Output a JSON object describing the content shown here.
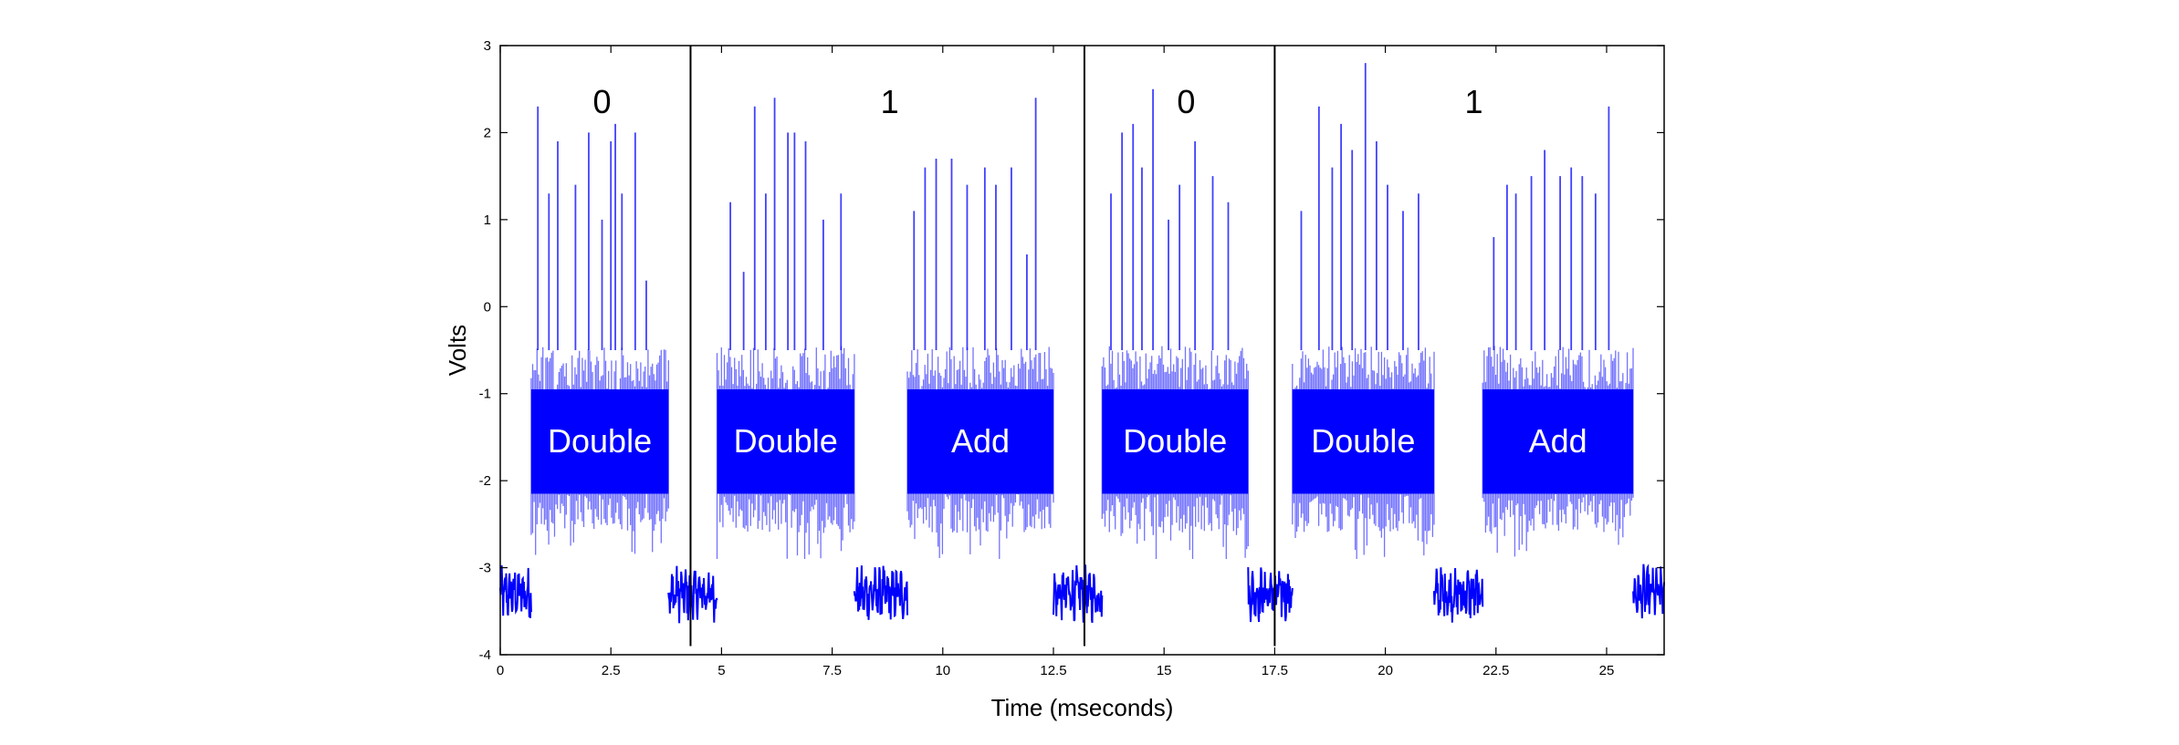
{
  "chart_data": {
    "type": "line",
    "title": "",
    "xlabel": "Time (mseconds)",
    "ylabel": "Volts",
    "xlim": [
      0,
      26.3
    ],
    "ylim": [
      -4,
      3
    ],
    "xticks": [
      0,
      2.5,
      5,
      7.5,
      10,
      12.5,
      15,
      17.5,
      20,
      22.5,
      25
    ],
    "xtick_labels": [
      "0",
      "2.5",
      "5",
      "7.5",
      "10",
      "12.5",
      "15",
      "17.5",
      "20",
      "22.5",
      "25"
    ],
    "yticks": [
      -4,
      -3,
      -2,
      -1,
      0,
      1,
      2,
      3
    ],
    "ytick_labels": [
      "-4",
      "-3",
      "-2",
      "-1",
      "0",
      "1",
      "2",
      "3"
    ],
    "grid": false,
    "legend": "none",
    "colors": {
      "trace": "#0000ff",
      "divider": "#000000",
      "bit_text": "#000000",
      "op_text": "#ffffff"
    },
    "baseline_level": -3.3,
    "burst_band": [
      -2.8,
      -0.5
    ],
    "dividers_x": [
      4.3,
      13.2,
      17.5
    ],
    "segments": [
      {
        "label": "Double",
        "start": 0.7,
        "end": 3.8,
        "spikes": [
          [
            0.85,
            2.3
          ],
          [
            1.1,
            1.3
          ],
          [
            1.3,
            1.9
          ],
          [
            1.7,
            1.4
          ],
          [
            2.0,
            2.0
          ],
          [
            2.3,
            1.0
          ],
          [
            2.5,
            1.9
          ],
          [
            2.6,
            2.1
          ],
          [
            2.75,
            1.3
          ],
          [
            3.05,
            2.0
          ],
          [
            3.3,
            0.3
          ]
        ]
      },
      {
        "label": "Double",
        "start": 4.9,
        "end": 8.0,
        "spikes": [
          [
            5.2,
            1.2
          ],
          [
            5.5,
            0.4
          ],
          [
            5.75,
            2.3
          ],
          [
            6.0,
            1.3
          ],
          [
            6.2,
            2.4
          ],
          [
            6.5,
            2.0
          ],
          [
            6.65,
            2.0
          ],
          [
            6.9,
            1.9
          ],
          [
            7.3,
            1.0
          ],
          [
            7.7,
            1.3
          ]
        ]
      },
      {
        "label": "Add",
        "start": 9.2,
        "end": 12.5,
        "spikes": [
          [
            9.35,
            1.1
          ],
          [
            9.6,
            1.6
          ],
          [
            9.85,
            1.7
          ],
          [
            10.2,
            1.7
          ],
          [
            10.55,
            1.4
          ],
          [
            10.95,
            1.6
          ],
          [
            11.2,
            1.4
          ],
          [
            11.55,
            1.6
          ],
          [
            11.9,
            0.6
          ],
          [
            12.1,
            2.4
          ]
        ]
      },
      {
        "label": "Double",
        "start": 13.6,
        "end": 16.9,
        "spikes": [
          [
            13.8,
            1.3
          ],
          [
            14.05,
            2.0
          ],
          [
            14.3,
            2.1
          ],
          [
            14.5,
            1.6
          ],
          [
            14.75,
            2.5
          ],
          [
            15.1,
            1.0
          ],
          [
            15.35,
            1.4
          ],
          [
            15.7,
            1.9
          ],
          [
            16.1,
            1.5
          ],
          [
            16.45,
            1.2
          ]
        ]
      },
      {
        "label": "Double",
        "start": 17.9,
        "end": 21.1,
        "spikes": [
          [
            18.1,
            1.1
          ],
          [
            18.5,
            2.3
          ],
          [
            18.8,
            1.6
          ],
          [
            19.0,
            2.1
          ],
          [
            19.25,
            1.8
          ],
          [
            19.55,
            2.8
          ],
          [
            19.8,
            1.9
          ],
          [
            20.05,
            1.4
          ],
          [
            20.4,
            1.1
          ],
          [
            20.75,
            1.3
          ]
        ]
      },
      {
        "label": "Add",
        "start": 22.2,
        "end": 25.6,
        "spikes": [
          [
            22.45,
            0.8
          ],
          [
            22.75,
            1.4
          ],
          [
            22.95,
            1.3
          ],
          [
            23.3,
            1.5
          ],
          [
            23.6,
            1.8
          ],
          [
            23.95,
            1.5
          ],
          [
            24.2,
            1.6
          ],
          [
            24.45,
            1.5
          ],
          [
            24.75,
            1.3
          ],
          [
            25.05,
            2.3
          ]
        ]
      }
    ],
    "bit_labels": [
      {
        "text": "0",
        "x": 2.3,
        "y": 2.35
      },
      {
        "text": "1",
        "x": 8.8,
        "y": 2.35
      },
      {
        "text": "0",
        "x": 15.5,
        "y": 2.35
      },
      {
        "text": "1",
        "x": 22.0,
        "y": 2.35
      }
    ]
  }
}
